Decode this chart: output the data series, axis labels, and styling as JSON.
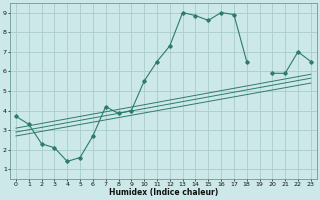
{
  "xlabel": "Humidex (Indice chaleur)",
  "background_color": "#cce8e8",
  "grid_color": "#aacccc",
  "line_color": "#2e7b6e",
  "xlim": [
    -0.5,
    23.5
  ],
  "ylim": [
    0.5,
    9.5
  ],
  "xticks": [
    0,
    1,
    2,
    3,
    4,
    5,
    6,
    7,
    8,
    9,
    10,
    11,
    12,
    13,
    14,
    15,
    16,
    17,
    18,
    19,
    20,
    21,
    22,
    23
  ],
  "yticks": [
    1,
    2,
    3,
    4,
    5,
    6,
    7,
    8,
    9
  ],
  "curve_x": [
    0,
    1,
    2,
    3,
    4,
    5,
    6,
    7,
    8,
    9,
    10,
    11,
    12,
    13,
    14,
    15,
    16,
    17,
    18,
    19,
    20,
    21,
    22,
    23
  ],
  "curve_y": [
    3.7,
    3.3,
    2.3,
    2.1,
    1.4,
    1.6,
    2.7,
    4.2,
    3.85,
    4.0,
    5.5,
    6.5,
    7.3,
    9.0,
    8.85,
    8.6,
    9.0,
    8.9,
    6.5,
    null,
    5.9,
    5.9,
    7.0,
    6.5
  ],
  "trend_lines": [
    {
      "x": [
        0,
        23
      ],
      "y": [
        2.7,
        5.4
      ]
    },
    {
      "x": [
        0,
        23
      ],
      "y": [
        2.9,
        5.65
      ]
    },
    {
      "x": [
        0,
        23
      ],
      "y": [
        3.1,
        5.85
      ]
    }
  ]
}
